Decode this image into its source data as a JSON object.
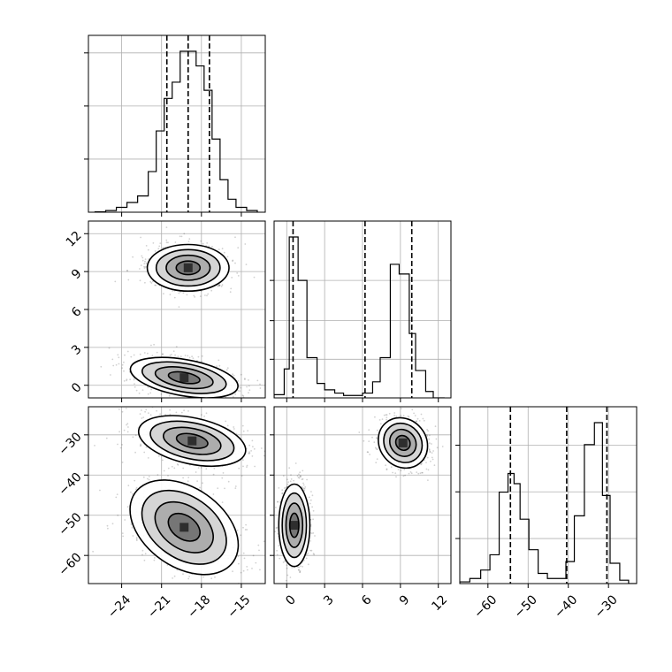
{
  "chart_data": {
    "type": "corner",
    "grid": true,
    "panels": [
      {
        "id": "hist-x",
        "type": "histogram",
        "xlim": [
          -26.5,
          -13.2
        ],
        "bin_edges": [
          -26.0,
          -25.2,
          -24.4,
          -23.6,
          -22.8,
          -22.0,
          -21.4,
          -20.8,
          -20.2,
          -19.6,
          -19.0,
          -18.4,
          -17.8,
          -17.2,
          -16.6,
          -16.0,
          -15.4,
          -14.6,
          -13.8
        ],
        "counts": [
          0.2,
          1,
          3,
          6,
          10,
          25,
          50,
          70,
          80,
          99,
          99,
          90,
          75,
          45,
          20,
          8,
          3,
          1
        ],
        "quantile_lines": [
          -20.6,
          -19.0,
          -17.4
        ],
        "y_gridlines": [
          0.33,
          0.66,
          0.99
        ]
      },
      {
        "id": "hist-y",
        "type": "histogram",
        "xlim": [
          -1.0,
          13.0
        ],
        "bin_edges": [
          -1.0,
          -0.2,
          0.2,
          0.9,
          1.6,
          2.4,
          3.0,
          3.8,
          4.5,
          5.3,
          6.0,
          6.8,
          7.4,
          8.2,
          8.9,
          9.7,
          10.2,
          11.0,
          11.6,
          12.5
        ],
        "counts": [
          2,
          18,
          100,
          73,
          25,
          9,
          5,
          3,
          1.5,
          1.5,
          3,
          10,
          25,
          83,
          77,
          40,
          17,
          4,
          0
        ],
        "quantile_lines": [
          0.5,
          6.2,
          9.9
        ],
        "y_gridlines": [
          0.24,
          0.48,
          0.73
        ]
      },
      {
        "id": "hist-z",
        "type": "histogram",
        "xlim": [
          -67.0,
          -23.0
        ],
        "bin_edges": [
          -67.0,
          -64.5,
          -61.8,
          -59.5,
          -57.2,
          -55.0,
          -53.5,
          -52.0,
          -49.8,
          -47.5,
          -45.2,
          -42.8,
          -40.6,
          -38.5,
          -36.0,
          -33.5,
          -31.5,
          -29.6,
          -27.2,
          -25.0,
          -23.0
        ],
        "counts": [
          1,
          3,
          8,
          17,
          54,
          65,
          59,
          38,
          20,
          6,
          3,
          3,
          13,
          40,
          82,
          95,
          52,
          12,
          2,
          0
        ],
        "quantile_lines": [
          -54.4,
          -40.4,
          -30.4
        ],
        "y_gridlines": [
          0.28,
          0.57,
          0.86
        ]
      },
      {
        "id": "scatter-x-y",
        "type": "scatter-contour",
        "xlim": [
          -26.5,
          -13.2
        ],
        "ylim": [
          -1.0,
          13.0
        ],
        "xticks": [
          "−24",
          "−21",
          "−18",
          "−15"
        ],
        "xtick_values": [
          -24,
          -21,
          -18,
          -15
        ],
        "yticks": [
          "0",
          "3",
          "6",
          "9",
          "12"
        ],
        "ytick_values": [
          0,
          3,
          6,
          9,
          12
        ],
        "modes": [
          {
            "cx": -19.0,
            "cy": 9.3,
            "sx": 1.5,
            "sy": 0.9,
            "rot": 0,
            "weight": 0.5
          },
          {
            "cx": -19.3,
            "cy": 0.6,
            "sx": 2.0,
            "sy": 0.7,
            "rot": 10,
            "weight": 0.5
          }
        ]
      },
      {
        "id": "scatter-x-z",
        "type": "scatter-contour",
        "xlim": [
          -26.5,
          -13.2
        ],
        "ylim": [
          -67.0,
          -23.0
        ],
        "xticks": [
          "−24",
          "−21",
          "−18",
          "−15"
        ],
        "xtick_values": [
          -24,
          -21,
          -18,
          -15
        ],
        "yticks": [
          "−30",
          "−40",
          "−50",
          "−60"
        ],
        "ytick_values": [
          -30,
          -40,
          -50,
          -60
        ],
        "modes": [
          {
            "cx": -18.7,
            "cy": -31.5,
            "sx": 2.0,
            "sy": 2.8,
            "rot": 12,
            "weight": 0.5
          },
          {
            "cx": -19.3,
            "cy": -53.0,
            "sx": 2.2,
            "sy": 4.8,
            "rot": 35,
            "weight": 0.5
          }
        ]
      },
      {
        "id": "scatter-y-z",
        "type": "scatter-contour",
        "xlim": [
          -1.0,
          13.0
        ],
        "ylim": [
          -67.0,
          -23.0
        ],
        "xticks": [
          "0",
          "3",
          "6",
          "9",
          "12"
        ],
        "xtick_values": [
          0,
          3,
          6,
          9,
          12
        ],
        "yticks": [],
        "ytick_values": [],
        "modes": [
          {
            "cx": 9.2,
            "cy": -32.0,
            "sx": 0.9,
            "sy": 3.2,
            "rot": -40,
            "weight": 0.5
          },
          {
            "cx": 0.6,
            "cy": -52.5,
            "sx": 0.6,
            "sy": 5.0,
            "rot": 0,
            "weight": 0.5
          }
        ]
      }
    ],
    "bottom_axis_z": {
      "xticks": [
        "−60",
        "−50",
        "−40",
        "−30"
      ],
      "xtick_values": [
        -60,
        -50,
        -40,
        -30
      ]
    }
  }
}
